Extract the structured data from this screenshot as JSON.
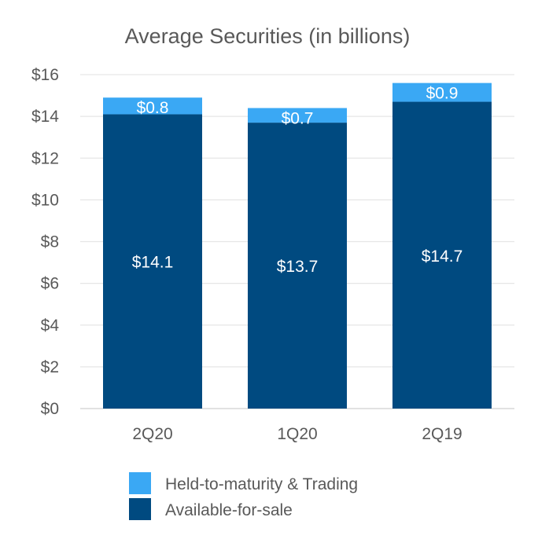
{
  "chart_data": {
    "type": "bar",
    "stacked": true,
    "title": "Average Securities (in billions)",
    "categories": [
      "2Q20",
      "1Q20",
      "2Q19"
    ],
    "series": [
      {
        "name": "Available-for-sale",
        "values": [
          14.1,
          13.7,
          14.7
        ],
        "labels": [
          "$14.1",
          "$13.7",
          "$14.7"
        ],
        "color": "#004a80"
      },
      {
        "name": "Held-to-maturity & Trading",
        "values": [
          0.8,
          0.7,
          0.9
        ],
        "labels": [
          "$0.8",
          "$0.7",
          "$0.9"
        ],
        "color": "#3aa8f4"
      }
    ],
    "ylim": [
      0,
      16
    ],
    "yticks": [
      0,
      2,
      4,
      6,
      8,
      10,
      12,
      14,
      16
    ],
    "ytick_labels": [
      "$0",
      "$2",
      "$4",
      "$6",
      "$8",
      "$10",
      "$12",
      "$14",
      "$16"
    ],
    "grid": true,
    "legend_position": "bottom",
    "legend_order": [
      "Held-to-maturity & Trading",
      "Available-for-sale"
    ]
  }
}
